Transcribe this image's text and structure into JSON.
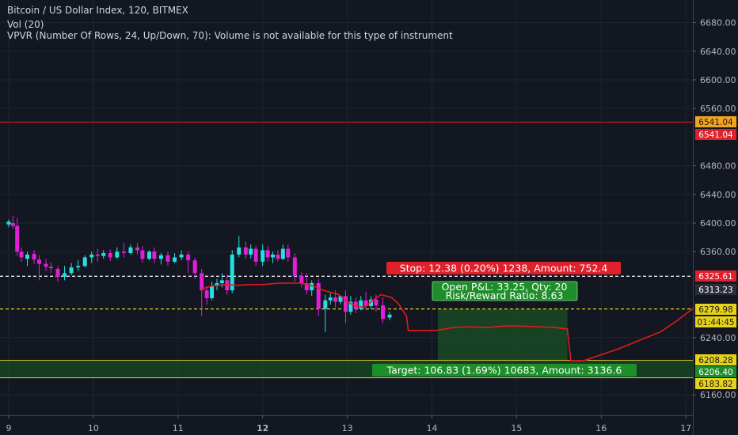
{
  "header": {
    "title": "Bitcoin / US Dollar Index, 120, BITMEX",
    "vol": "Vol (20)",
    "vpvr": "VPVR (Number Of Rows, 24, Up/Down, 70): Volume is not available for this type of instrument"
  },
  "colors": {
    "background": "#131722",
    "grid": "#1f2430",
    "up": "#26e0e0",
    "down": "#e11fd6",
    "stop_red": "#e0202b",
    "target_green": "#1e8e2a",
    "entry_yellow": "#e5d21a",
    "white_line": "#e6e6e6",
    "drawn_curve": "#e11b1b"
  },
  "price_labels": {
    "red_line_tag": "6541.04",
    "red_line_tag_2": "6541.04",
    "stop_tag": "6325.61",
    "current_tag": "6313.23",
    "entry_tag": "6279.98",
    "countdown_tag": "01:44:45",
    "target_top_tag": "6208.28",
    "target_mid_tag": "6206.40",
    "target_bottom_tag": "6183.82"
  },
  "position": {
    "stop_text": "Stop: 12.38 (0.20%) 1238, Amount: 752.4",
    "pnl_text": "Open P&L: 33.25, Qty: 20",
    "rr_text": "Risk/Reward Ratio: 8.63",
    "target_text": "Target: 106.83 (1.69%) 10683, Amount: 3136.6"
  },
  "chart_data": {
    "type": "candlestick",
    "symbol": "Bitcoin / US Dollar Index, 120, BITMEX",
    "y_ticks": [
      "6680.00",
      "6640.00",
      "6600.00",
      "6560.00",
      "6480.00",
      "6440.00",
      "6400.00",
      "6360.00",
      "6240.00",
      "6160.00"
    ],
    "x_ticks": [
      "9",
      "10",
      "11",
      "12",
      "13",
      "14",
      "15",
      "16",
      "17"
    ],
    "x_range": [
      9,
      17.1
    ],
    "y_range": [
      6150,
      6700
    ],
    "horizontal_lines": [
      {
        "price": 6541.04,
        "role": "red line"
      },
      {
        "price": 6325.61,
        "role": "stop (white dashed)"
      },
      {
        "price": 6279.98,
        "role": "entry (yellow dashed)"
      },
      {
        "price": 6208.28,
        "role": "target top"
      },
      {
        "price": 6183.82,
        "role": "target bottom"
      }
    ],
    "candles": [
      {
        "t": 9.0,
        "o": 6398,
        "h": 6405,
        "c": 6402,
        "l": 6394
      },
      {
        "t": 9.05,
        "o": 6400,
        "h": 6410,
        "c": 6396,
        "l": 6392
      },
      {
        "t": 9.1,
        "o": 6396,
        "h": 6407,
        "c": 6360,
        "l": 6354
      },
      {
        "t": 9.15,
        "o": 6360,
        "h": 6366,
        "c": 6352,
        "l": 6346
      },
      {
        "t": 9.22,
        "o": 6350,
        "h": 6360,
        "c": 6356,
        "l": 6340
      },
      {
        "t": 9.3,
        "o": 6357,
        "h": 6362,
        "c": 6349,
        "l": 6343
      },
      {
        "t": 9.36,
        "o": 6349,
        "h": 6355,
        "c": 6343,
        "l": 6320
      },
      {
        "t": 9.44,
        "o": 6343,
        "h": 6350,
        "c": 6339,
        "l": 6333
      },
      {
        "t": 9.5,
        "o": 6339,
        "h": 6345,
        "c": 6337,
        "l": 6330
      },
      {
        "t": 9.58,
        "o": 6336,
        "h": 6340,
        "c": 6325,
        "l": 6318
      },
      {
        "t": 9.66,
        "o": 6325,
        "h": 6340,
        "c": 6330,
        "l": 6320
      },
      {
        "t": 9.74,
        "o": 6330,
        "h": 6344,
        "c": 6338,
        "l": 6327
      },
      {
        "t": 9.82,
        "o": 6338,
        "h": 6348,
        "c": 6340,
        "l": 6333
      },
      {
        "t": 9.9,
        "o": 6340,
        "h": 6355,
        "c": 6352,
        "l": 6338
      },
      {
        "t": 9.98,
        "o": 6352,
        "h": 6360,
        "c": 6356,
        "l": 6344
      },
      {
        "t": 10.05,
        "o": 6356,
        "h": 6364,
        "c": 6354,
        "l": 6346
      },
      {
        "t": 10.12,
        "o": 6354,
        "h": 6362,
        "c": 6358,
        "l": 6350
      },
      {
        "t": 10.2,
        "o": 6358,
        "h": 6363,
        "c": 6352,
        "l": 6347
      },
      {
        "t": 10.28,
        "o": 6352,
        "h": 6366,
        "c": 6360,
        "l": 6350
      },
      {
        "t": 10.36,
        "o": 6360,
        "h": 6372,
        "c": 6358,
        "l": 6352
      },
      {
        "t": 10.44,
        "o": 6358,
        "h": 6370,
        "c": 6366,
        "l": 6356
      },
      {
        "t": 10.52,
        "o": 6366,
        "h": 6372,
        "c": 6362,
        "l": 6356
      },
      {
        "t": 10.58,
        "o": 6362,
        "h": 6368,
        "c": 6350,
        "l": 6345
      },
      {
        "t": 10.66,
        "o": 6350,
        "h": 6362,
        "c": 6360,
        "l": 6348
      },
      {
        "t": 10.72,
        "o": 6360,
        "h": 6366,
        "c": 6350,
        "l": 6344
      },
      {
        "t": 10.8,
        "o": 6350,
        "h": 6358,
        "c": 6355,
        "l": 6342
      },
      {
        "t": 10.88,
        "o": 6355,
        "h": 6360,
        "c": 6346,
        "l": 6340
      },
      {
        "t": 10.96,
        "o": 6346,
        "h": 6358,
        "c": 6352,
        "l": 6344
      },
      {
        "t": 11.04,
        "o": 6352,
        "h": 6362,
        "c": 6356,
        "l": 6348
      },
      {
        "t": 11.12,
        "o": 6356,
        "h": 6360,
        "c": 6348,
        "l": 6330
      },
      {
        "t": 11.2,
        "o": 6348,
        "h": 6352,
        "c": 6330,
        "l": 6322
      },
      {
        "t": 11.28,
        "o": 6330,
        "h": 6336,
        "c": 6306,
        "l": 6270
      },
      {
        "t": 11.34,
        "o": 6306,
        "h": 6312,
        "c": 6295,
        "l": 6286
      },
      {
        "t": 11.4,
        "o": 6295,
        "h": 6318,
        "c": 6312,
        "l": 6292
      },
      {
        "t": 11.46,
        "o": 6312,
        "h": 6322,
        "c": 6316,
        "l": 6306
      },
      {
        "t": 11.52,
        "o": 6316,
        "h": 6330,
        "c": 6320,
        "l": 6310
      },
      {
        "t": 11.58,
        "o": 6320,
        "h": 6328,
        "c": 6306,
        "l": 6300
      },
      {
        "t": 11.64,
        "o": 6306,
        "h": 6362,
        "c": 6356,
        "l": 6302
      },
      {
        "t": 11.72,
        "o": 6356,
        "h": 6382,
        "c": 6366,
        "l": 6352
      },
      {
        "t": 11.8,
        "o": 6366,
        "h": 6374,
        "c": 6356,
        "l": 6350
      },
      {
        "t": 11.86,
        "o": 6356,
        "h": 6370,
        "c": 6364,
        "l": 6350
      },
      {
        "t": 11.92,
        "o": 6364,
        "h": 6368,
        "c": 6346,
        "l": 6340
      },
      {
        "t": 12.0,
        "o": 6346,
        "h": 6370,
        "c": 6362,
        "l": 6340
      },
      {
        "t": 12.06,
        "o": 6362,
        "h": 6368,
        "c": 6352,
        "l": 6346
      },
      {
        "t": 12.12,
        "o": 6352,
        "h": 6360,
        "c": 6356,
        "l": 6344
      },
      {
        "t": 12.18,
        "o": 6356,
        "h": 6362,
        "c": 6350,
        "l": 6346
      },
      {
        "t": 12.24,
        "o": 6350,
        "h": 6370,
        "c": 6364,
        "l": 6348
      },
      {
        "t": 12.3,
        "o": 6364,
        "h": 6370,
        "c": 6352,
        "l": 6346
      },
      {
        "t": 12.38,
        "o": 6352,
        "h": 6358,
        "c": 6326,
        "l": 6318
      },
      {
        "t": 12.46,
        "o": 6326,
        "h": 6332,
        "c": 6316,
        "l": 6310
      },
      {
        "t": 12.52,
        "o": 6316,
        "h": 6330,
        "c": 6306,
        "l": 6300
      },
      {
        "t": 12.58,
        "o": 6306,
        "h": 6320,
        "c": 6316,
        "l": 6298
      },
      {
        "t": 12.66,
        "o": 6316,
        "h": 6322,
        "c": 6280,
        "l": 6270
      },
      {
        "t": 12.74,
        "o": 6280,
        "h": 6300,
        "c": 6292,
        "l": 6248
      },
      {
        "t": 12.8,
        "o": 6292,
        "h": 6302,
        "c": 6296,
        "l": 6286
      },
      {
        "t": 12.86,
        "o": 6296,
        "h": 6306,
        "c": 6290,
        "l": 6282
      },
      {
        "t": 12.92,
        "o": 6290,
        "h": 6298,
        "c": 6298,
        "l": 6286
      },
      {
        "t": 12.98,
        "o": 6298,
        "h": 6306,
        "c": 6276,
        "l": 6260
      },
      {
        "t": 13.04,
        "o": 6276,
        "h": 6298,
        "c": 6290,
        "l": 6272
      },
      {
        "t": 13.1,
        "o": 6290,
        "h": 6296,
        "c": 6280,
        "l": 6274
      },
      {
        "t": 13.16,
        "o": 6280,
        "h": 6298,
        "c": 6292,
        "l": 6278
      },
      {
        "t": 13.22,
        "o": 6292,
        "h": 6304,
        "c": 6284,
        "l": 6278
      },
      {
        "t": 13.28,
        "o": 6284,
        "h": 6298,
        "c": 6293,
        "l": 6280
      },
      {
        "t": 13.34,
        "o": 6293,
        "h": 6300,
        "c": 6285,
        "l": 6276
      },
      {
        "t": 13.42,
        "o": 6285,
        "h": 6296,
        "c": 6266,
        "l": 6260
      },
      {
        "t": 13.5,
        "o": 6268,
        "h": 6276,
        "c": 6272,
        "l": 6264
      }
    ],
    "drawn_curve_points": [
      [
        11.28,
        6308
      ],
      [
        11.4,
        6312
      ],
      [
        11.55,
        6314
      ],
      [
        11.7,
        6313
      ],
      [
        11.85,
        6314
      ],
      [
        12.0,
        6314
      ],
      [
        12.2,
        6316
      ],
      [
        12.45,
        6316
      ],
      [
        12.6,
        6312
      ],
      [
        12.72,
        6306
      ],
      [
        12.9,
        6300
      ],
      [
        13.0,
        6290
      ],
      [
        13.1,
        6284
      ],
      [
        13.2,
        6282
      ],
      [
        13.3,
        6292
      ],
      [
        13.4,
        6300
      ],
      [
        13.52,
        6296
      ],
      [
        13.6,
        6288
      ],
      [
        13.7,
        6270
      ],
      [
        13.72,
        6250
      ],
      [
        13.85,
        6250
      ],
      [
        14.05,
        6250
      ],
      [
        14.25,
        6254
      ],
      [
        14.45,
        6255
      ],
      [
        14.65,
        6254
      ],
      [
        14.85,
        6256
      ],
      [
        15.05,
        6256
      ],
      [
        15.25,
        6255
      ],
      [
        15.45,
        6254
      ],
      [
        15.6,
        6252
      ],
      [
        15.64,
        6208
      ],
      [
        15.8,
        6208
      ],
      [
        16.0,
        6216
      ],
      [
        16.2,
        6224
      ],
      [
        16.45,
        6236
      ],
      [
        16.7,
        6248
      ],
      [
        16.9,
        6264
      ],
      [
        17.1,
        6282
      ]
    ],
    "grid": true
  }
}
